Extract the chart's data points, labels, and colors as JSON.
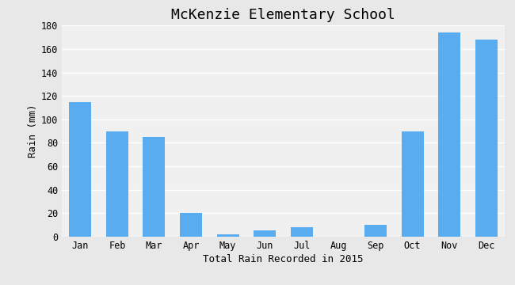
{
  "title": "McKenzie Elementary School",
  "xlabel": "Total Rain Recorded in 2015",
  "ylabel": "Rain (mm)",
  "months": [
    "Jan",
    "Feb",
    "Mar",
    "Apr",
    "May",
    "Jun",
    "Jul",
    "Aug",
    "Sep",
    "Oct",
    "Nov",
    "Dec"
  ],
  "values": [
    115,
    90,
    85,
    20,
    2,
    5,
    8,
    0,
    10,
    90,
    174,
    168
  ],
  "bar_color": "#5AACF0",
  "background_color": "#E8E8E8",
  "plot_bg_color": "#F0F0F0",
  "ylim": [
    0,
    180
  ],
  "yticks": [
    0,
    20,
    40,
    60,
    80,
    100,
    120,
    140,
    160,
    180
  ],
  "title_fontsize": 13,
  "label_fontsize": 9,
  "tick_fontsize": 8.5
}
